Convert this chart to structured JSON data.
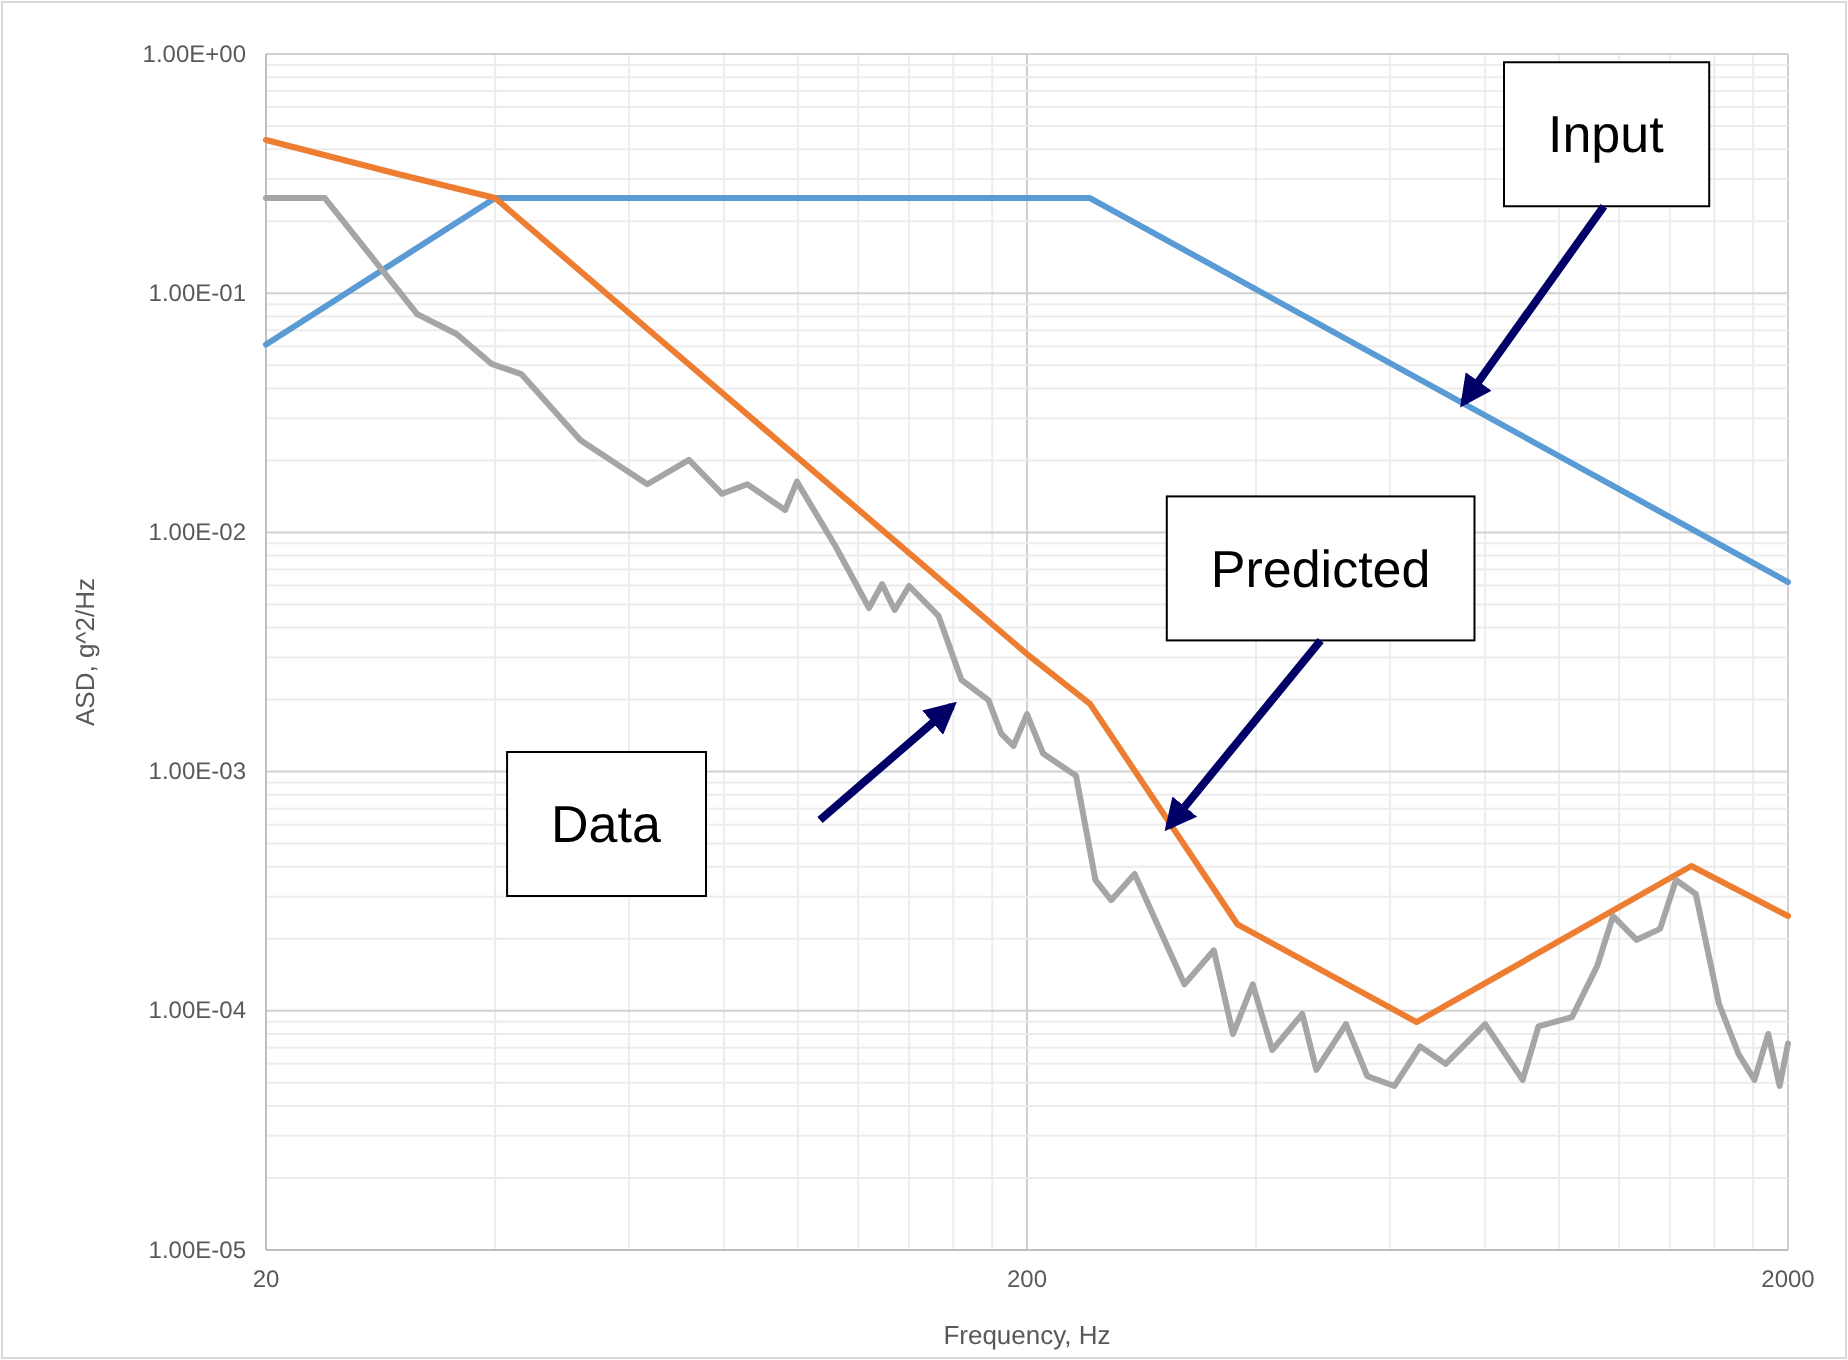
{
  "chart_data": {
    "type": "line",
    "xlabel": "Frequency, Hz",
    "ylabel": "ASD, g^2/Hz",
    "log": "xy",
    "grid": true,
    "marker": "none",
    "line_style": "solid",
    "xlim": [
      20,
      2000
    ],
    "xticks": [
      20,
      200,
      2000
    ],
    "ylim": [
      1e-05,
      1
    ],
    "yticks": [
      {
        "value": 1,
        "label": "1.00E+00"
      },
      {
        "value": 0.1,
        "label": "1.00E-01"
      },
      {
        "value": 0.01,
        "label": "1.00E-02"
      },
      {
        "value": 0.001,
        "label": "1.00E-03"
      },
      {
        "value": 0.0001,
        "label": "1.00E-04"
      },
      {
        "value": 1e-05,
        "label": "1.00E-05"
      }
    ],
    "series": [
      {
        "color": "#5b9bd5",
        "x": [
          20,
          40,
          242,
          2000
        ],
        "values": [
          0.061,
          0.25,
          0.25,
          0.0062
        ]
      },
      {
        "color": "#ed7d31",
        "x": [
          20,
          29.8,
          40,
          64.6,
          200,
          242,
          378,
          650,
          1493,
          2000
        ],
        "values": [
          0.437,
          0.315,
          0.25,
          0.0675,
          0.0031,
          0.00192,
          0.00023,
          8.97e-05,
          0.000403,
          0.000249
        ]
      },
      {
        "color": "#a5a5a5",
        "x": [
          20,
          23.9,
          31.6,
          35.6,
          39.6,
          43.3,
          51.8,
          63.4,
          71.9,
          79.5,
          85.8,
          96.2,
          99.7,
          112,
          124,
          129,
          134,
          140,
          153,
          164,
          178,
          185,
          192,
          200,
          210,
          232,
          246,
          258,
          277,
          322,
          352,
          373,
          396,
          420,
          460,
          480,
          525,
          560,
          608,
          657,
          710,
          800,
          896,
          940,
          1040,
          1123,
          1178,
          1265,
          1358,
          1425,
          1513,
          1623,
          1722,
          1807,
          1884,
          1950,
          2000
        ],
        "values": [
          0.25,
          0.25,
          0.0818,
          0.0675,
          0.0506,
          0.0459,
          0.0243,
          0.0159,
          0.0201,
          0.0145,
          0.0159,
          0.0124,
          0.0163,
          0.00877,
          0.00483,
          0.00608,
          0.00474,
          0.00597,
          0.00448,
          0.00242,
          0.00199,
          0.00144,
          0.00128,
          0.00174,
          0.00119,
          0.00096,
          0.000352,
          0.00029,
          0.000373,
          0.000129,
          0.000179,
          8e-05,
          0.000129,
          6.86e-05,
          9.7e-05,
          5.66e-05,
          8.8e-05,
          5.33e-05,
          4.85e-05,
          7.1e-05,
          6e-05,
          8.8e-05,
          5.14e-05,
          8.6e-05,
          9.4e-05,
          0.000154,
          0.000249,
          0.000198,
          0.00022,
          0.000352,
          0.000308,
          0.000107,
          6.6e-05,
          5.14e-05,
          8e-05,
          4.85e-05,
          7.3e-05
        ]
      }
    ],
    "annotations": [
      {
        "text": "Input",
        "x": 750,
        "y": 0.035
      },
      {
        "text": "Predicted",
        "x": 307,
        "y": 0.00059
      },
      "Data"
    ]
  }
}
